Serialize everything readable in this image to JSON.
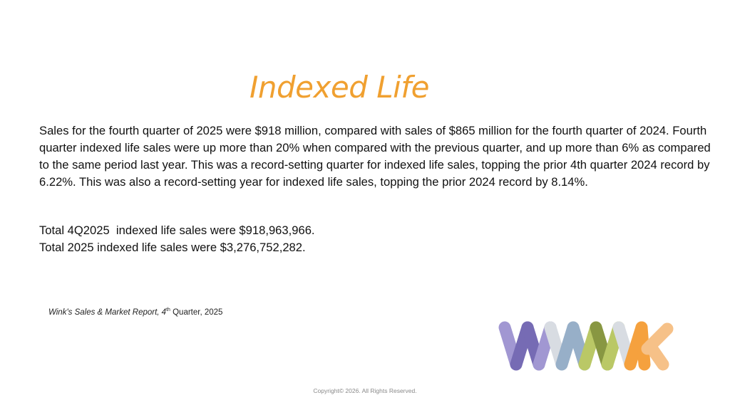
{
  "slide": {
    "title": "Indexed Life",
    "paragraph": "Sales for the fourth quarter of 2025 were $918 million, compared with sales of $865 million for the fourth quarter of 2024. Fourth quarter indexed life sales were up more than 20% when compared with the previous quarter, and up more than 6% as compared to the same period last year. This was a record-setting quarter for indexed life sales, topping the prior 4th quarter 2024 record by 6.22%. This was also a record-setting year for indexed life sales, topping the prior 2024 record by 8.14%.",
    "totals": [
      "Total 4Q2025  indexed life sales were $918,963,966.",
      "Total 2025 indexed life sales were $3,276,752,282."
    ],
    "source": {
      "name": "Wink's Sales & Market Report, 4",
      "superscript": "th",
      "rest": " Quarter, 2025"
    },
    "copyright": "Copyright© 2026. All Rights Reserved.",
    "logo": {
      "label": "wink",
      "colors": [
        "#6B5FAE",
        "#9A8FCF",
        "#D5DAE0",
        "#8FA9C4",
        "#7E8F33",
        "#B5C45A",
        "#F59A2E",
        "#F6BC7E"
      ]
    }
  }
}
